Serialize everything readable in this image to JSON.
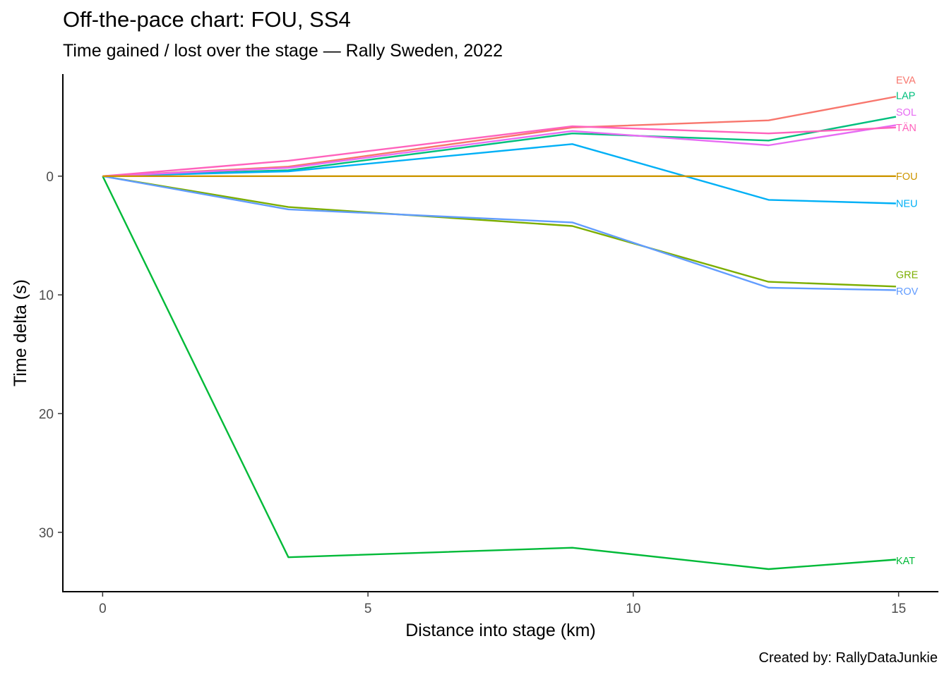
{
  "chart_data": {
    "type": "line",
    "title": "Off-the-pace chart: FOU, SS4",
    "subtitle": "Time gained / lost over the stage — Rally Sweden, 2022",
    "caption": "Created by: RallyDataJunkie",
    "xlabel": "Distance into stage (km)",
    "ylabel": "Time delta (s)",
    "xlim": [
      -0.75,
      15.75
    ],
    "ylim": [
      -8.6,
      35
    ],
    "y_reversed": true,
    "grid": false,
    "legend": "none",
    "x_ticks": [
      0,
      5,
      10,
      15
    ],
    "y_ticks": [
      0,
      10,
      20,
      30
    ],
    "series": [
      {
        "name": "EVA",
        "color": "#F8766D",
        "x": [
          0,
          3.5,
          8.85,
          12.55,
          14.95
        ],
        "y": [
          0,
          -0.8,
          -4.1,
          -4.7,
          -6.7
        ]
      },
      {
        "name": "GRE",
        "color": "#7CAE00",
        "x": [
          0,
          3.5,
          8.85,
          12.55,
          14.95
        ],
        "y": [
          0,
          2.6,
          4.2,
          8.9,
          9.3
        ]
      },
      {
        "name": "KAT",
        "color": "#00BA38",
        "x": [
          0,
          3.5,
          8.85,
          12.55,
          14.95
        ],
        "y": [
          0,
          32.1,
          31.3,
          33.1,
          32.3
        ]
      },
      {
        "name": "LAP",
        "color": "#00BF7D",
        "x": [
          0,
          3.5,
          8.85,
          12.55,
          14.95
        ],
        "y": [
          0,
          -0.5,
          -3.6,
          -3.0,
          -5.0
        ]
      },
      {
        "name": "NEU",
        "color": "#00B0F6",
        "x": [
          0,
          3.5,
          8.85,
          12.55,
          14.95
        ],
        "y": [
          0,
          -0.4,
          -2.7,
          2.0,
          2.3
        ]
      },
      {
        "name": "ROV",
        "color": "#619CFF",
        "x": [
          0,
          3.5,
          8.85,
          12.55,
          14.95
        ],
        "y": [
          0,
          2.8,
          3.9,
          9.4,
          9.6
        ]
      },
      {
        "name": "SOL",
        "color": "#E76BF3",
        "x": [
          0,
          3.5,
          8.85,
          12.55,
          14.95
        ],
        "y": [
          0,
          -0.7,
          -3.8,
          -2.6,
          -4.3
        ]
      },
      {
        "name": "TÄN",
        "color": "#FF62BC",
        "x": [
          0,
          3.5,
          8.85,
          12.55,
          14.95
        ],
        "y": [
          0,
          -1.3,
          -4.2,
          -3.6,
          -4.1
        ]
      },
      {
        "name": "FOU",
        "color": "#CD9600",
        "x": [
          0,
          3.5,
          8.85,
          12.55,
          14.95
        ],
        "y": [
          0,
          0,
          0,
          0,
          0
        ]
      }
    ],
    "end_labels": [
      {
        "name": "EVA",
        "y": -8.1
      },
      {
        "name": "LAP",
        "y": -6.8
      },
      {
        "name": "SOL",
        "y": -5.4
      },
      {
        "name": "TÄN",
        "y": -4.1
      },
      {
        "name": "FOU",
        "y": 0
      },
      {
        "name": "NEU",
        "y": 2.3
      },
      {
        "name": "GRE",
        "y": 8.3
      },
      {
        "name": "ROV",
        "y": 9.7
      },
      {
        "name": "KAT",
        "y": 32.4
      }
    ]
  }
}
